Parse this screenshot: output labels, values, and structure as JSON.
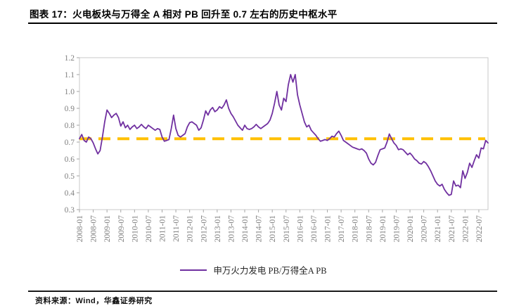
{
  "figure": {
    "title": "图表 17：火电板块与万得全 A 相对 PB 回升至 0.7 左右的历史中枢水平",
    "source": "资料来源：Wind，华鑫证券研究"
  },
  "colors": {
    "series_purple": "#7030A0",
    "reference_gold": "#FFC000",
    "axis_label_gray": "#7f7f7f",
    "plot_frame_gray": "#c9c9c9",
    "text_black": "#000000"
  },
  "chart_data": {
    "type": "line",
    "title": "火电板块与万得全 A 相对 PB 回升至 0.7 左右的历史中枢水平",
    "xlabel": "",
    "ylabel": "",
    "ylim": [
      0.3,
      1.2
    ],
    "grid": false,
    "legend_position": "bottom-center",
    "y_tick_labels": [
      "1.2",
      "1.1",
      "1.0",
      "0.9",
      "0.8",
      "0.7",
      "0.6",
      "0.5",
      "0.4",
      "0.3"
    ],
    "x_tick_labels": [
      "2008-01",
      "2008-07",
      "2009-01",
      "2009-07",
      "2010-01",
      "2010-07",
      "2011-01",
      "2011-07",
      "2012-01",
      "2012-07",
      "2013-01",
      "2013-07",
      "2014-01",
      "2014-07",
      "2015-01",
      "2015-07",
      "2016-01",
      "2016-07",
      "2017-01",
      "2017-07",
      "2018-01",
      "2018-07",
      "2019-01",
      "2019-07",
      "2020-01",
      "2020-07",
      "2021-01",
      "2021-07",
      "2022-01",
      "2022-07"
    ],
    "x_start": "2008-01",
    "x_end": "2022-11",
    "x_frequency": "monthly",
    "reference_line": {
      "value": 0.72,
      "style": "dashed",
      "color": "#FFC000"
    },
    "series": [
      {
        "name": "申万火力发电 PB/万得全A PB",
        "color": "#7030A0",
        "values": [
          0.72,
          0.745,
          0.71,
          0.7,
          0.73,
          0.72,
          0.695,
          0.66,
          0.63,
          0.65,
          0.73,
          0.82,
          0.89,
          0.87,
          0.845,
          0.86,
          0.87,
          0.845,
          0.795,
          0.82,
          0.785,
          0.8,
          0.775,
          0.79,
          0.8,
          0.78,
          0.79,
          0.805,
          0.79,
          0.78,
          0.8,
          0.79,
          0.78,
          0.77,
          0.78,
          0.775,
          0.73,
          0.705,
          0.71,
          0.715,
          0.78,
          0.86,
          0.78,
          0.74,
          0.73,
          0.74,
          0.75,
          0.79,
          0.815,
          0.82,
          0.81,
          0.8,
          0.77,
          0.785,
          0.83,
          0.885,
          0.86,
          0.89,
          0.905,
          0.88,
          0.89,
          0.91,
          0.9,
          0.92,
          0.95,
          0.9,
          0.87,
          0.85,
          0.825,
          0.8,
          0.785,
          0.77,
          0.8,
          0.78,
          0.775,
          0.78,
          0.79,
          0.805,
          0.79,
          0.78,
          0.79,
          0.8,
          0.81,
          0.83,
          0.87,
          0.93,
          1.0,
          0.92,
          0.89,
          0.96,
          0.94,
          1.04,
          1.1,
          1.055,
          1.1,
          0.98,
          0.92,
          0.87,
          0.82,
          0.79,
          0.8,
          0.77,
          0.755,
          0.74,
          0.72,
          0.705,
          0.71,
          0.715,
          0.71,
          0.72,
          0.735,
          0.73,
          0.75,
          0.765,
          0.74,
          0.71,
          0.7,
          0.69,
          0.68,
          0.67,
          0.665,
          0.66,
          0.655,
          0.66,
          0.65,
          0.635,
          0.6,
          0.575,
          0.565,
          0.58,
          0.62,
          0.655,
          0.66,
          0.665,
          0.7,
          0.748,
          0.72,
          0.695,
          0.68,
          0.655,
          0.66,
          0.655,
          0.64,
          0.625,
          0.635,
          0.62,
          0.6,
          0.59,
          0.575,
          0.57,
          0.585,
          0.575,
          0.555,
          0.53,
          0.5,
          0.47,
          0.45,
          0.44,
          0.45,
          0.42,
          0.4,
          0.385,
          0.39,
          0.47,
          0.44,
          0.445,
          0.43,
          0.53,
          0.485,
          0.52,
          0.575,
          0.55,
          0.59,
          0.625,
          0.605,
          0.665,
          0.66,
          0.71,
          0.695
        ]
      }
    ]
  }
}
